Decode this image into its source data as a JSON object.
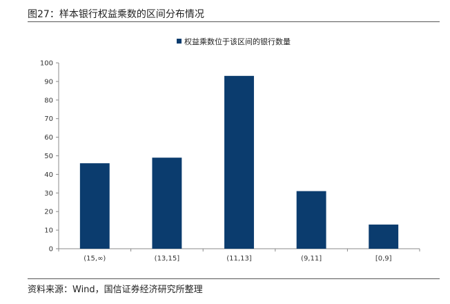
{
  "figure": {
    "title": "图27：样本银行权益乘数的区间分布情况",
    "source": "资料来源：Wind，国信证券经济研究所整理"
  },
  "chart_data": {
    "type": "bar",
    "categories": [
      "(15,∞)",
      "(13,15]",
      "(11,13]",
      "(9,11]",
      "[0,9]"
    ],
    "series": [
      {
        "name": "权益乘数位于该区间的银行数量",
        "values": [
          46,
          49,
          93,
          31,
          13
        ],
        "color": "#0b3c6e"
      }
    ],
    "ylim": [
      0,
      100
    ],
    "yticks": [
      0,
      10,
      20,
      30,
      40,
      50,
      60,
      70,
      80,
      90,
      100
    ],
    "legend_position": "top-center",
    "grid": false
  }
}
